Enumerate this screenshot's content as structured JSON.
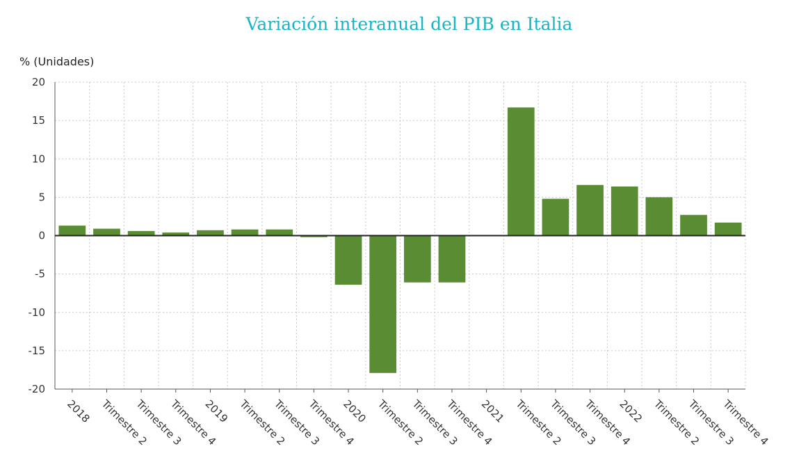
{
  "chart_data": {
    "type": "bar",
    "title": "Variación interanual del PIB en Italia",
    "ylabel": "% (Unidades)",
    "xlabel": "",
    "ylim": [
      -20,
      20
    ],
    "yticks": [
      20,
      15,
      10,
      5,
      0,
      -5,
      -10,
      -15,
      -20
    ],
    "grid": true,
    "bar_color": "#5a8c33",
    "categories": [
      "2018",
      "Trimestre 2",
      "Trimestre 3",
      "Trimestre 4",
      "2019",
      "Trimestre 2",
      "Trimestre 3",
      "Trimestre 4",
      "2020",
      "Trimestre 2",
      "Trimestre 3",
      "Trimestre 4",
      "2021",
      "Trimestre 2",
      "Trimestre 3",
      "Trimestre 4",
      "2022",
      "Trimestre 2",
      "Trimestre 3",
      "Trimestre 4"
    ],
    "values": [
      1.3,
      0.9,
      0.6,
      0.4,
      0.7,
      0.8,
      0.8,
      -0.2,
      -6.4,
      -17.9,
      -6.1,
      -6.1,
      0.0,
      16.7,
      4.8,
      6.6,
      6.4,
      5.0,
      2.7,
      1.7
    ]
  }
}
